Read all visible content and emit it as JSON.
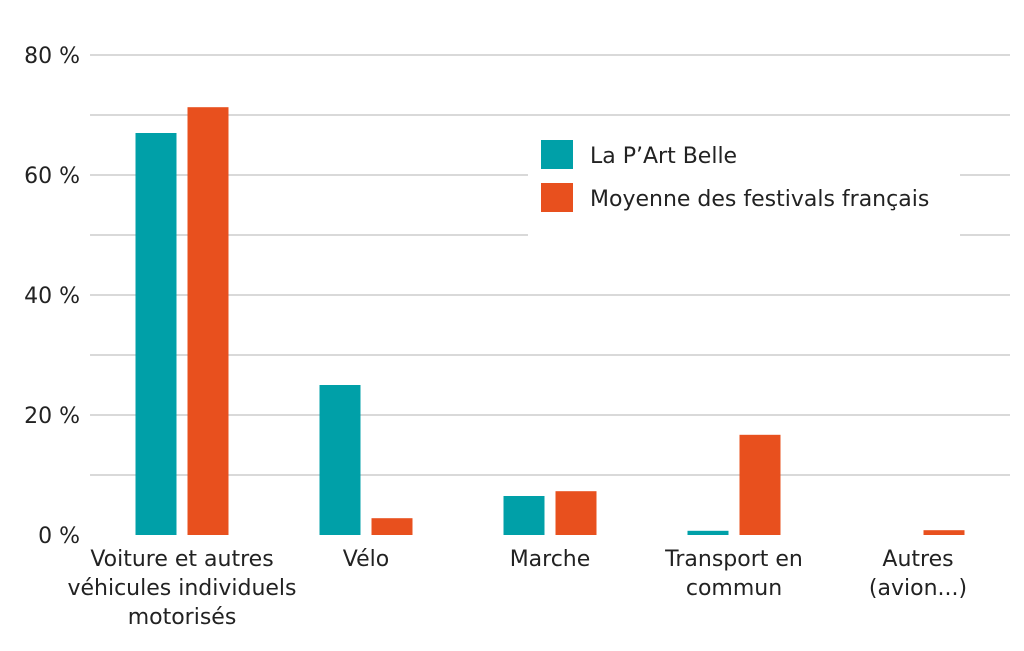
{
  "chart_data": {
    "type": "bar",
    "categories": [
      [
        "Voiture et autres",
        "véhicules individuels",
        "motorisés"
      ],
      [
        "Vélo"
      ],
      [
        "Marche"
      ],
      [
        "Transport en",
        "commun"
      ],
      [
        "Autres",
        "(avion...)"
      ]
    ],
    "series": [
      {
        "name": "La P’Art Belle",
        "color": "#00a0a8",
        "values": [
          67,
          25,
          6.5,
          0.7,
          0
        ]
      },
      {
        "name": "Moyenne des festivals français",
        "color": "#e8501e",
        "values": [
          71.3,
          2.8,
          7.3,
          16.7,
          0.8
        ]
      }
    ],
    "yticks": [
      "0 %",
      "20 %",
      "40 %",
      "60 %",
      "80 %"
    ],
    "ytick_values": [
      0,
      20,
      40,
      60,
      80
    ],
    "ylim": [
      0,
      80
    ],
    "grid": true,
    "legend_position": "top-right"
  }
}
